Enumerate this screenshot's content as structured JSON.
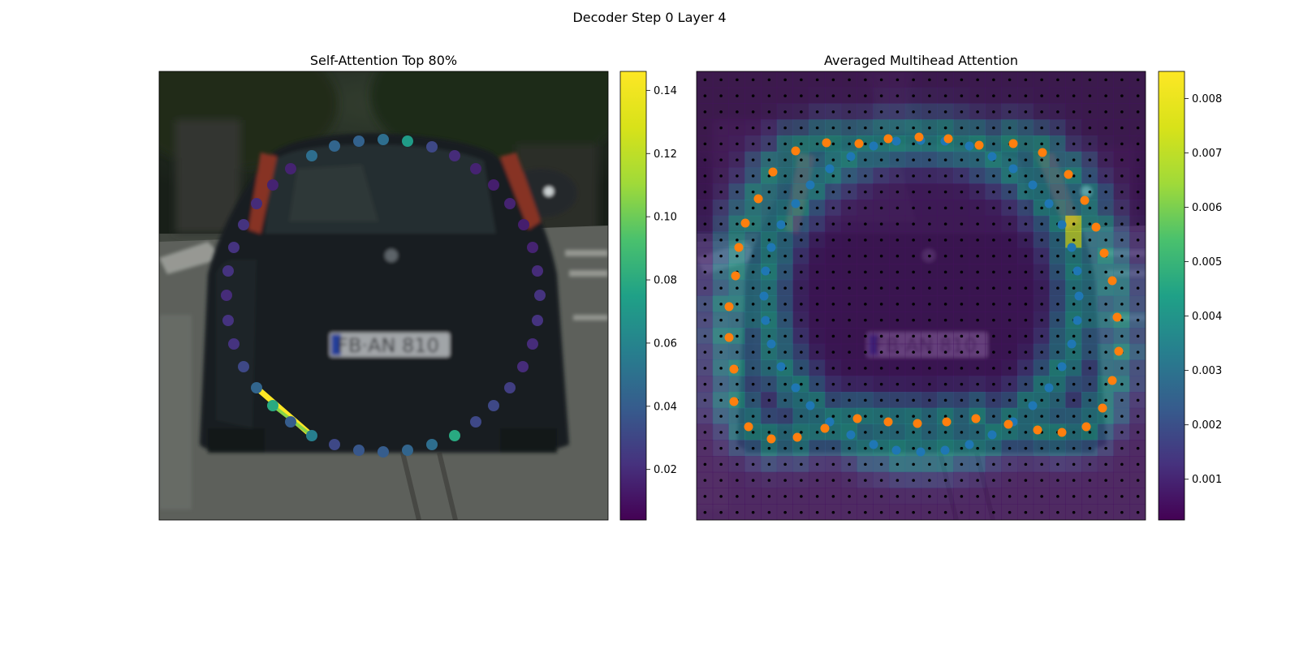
{
  "figure": {
    "title": "Decoder Step 0 Layer 4"
  },
  "chart_data": [
    {
      "type": "scatter",
      "title": "Self-Attention Top 80%",
      "background": "photo of the rear of a dark hatchback car on a street (blurred)",
      "colormap": "viridis",
      "colorbar": {
        "range": [
          0.004,
          0.146
        ],
        "ticks": [
          "0.02",
          "0.04",
          "0.06",
          "0.08",
          "0.10",
          "0.12",
          "0.14"
        ]
      },
      "points": [
        [
          384,
          192,
          0.055
        ],
        [
          412,
          180,
          0.05
        ],
        [
          442,
          174,
          0.048
        ],
        [
          472,
          172,
          0.055
        ],
        [
          502,
          174,
          0.082
        ],
        [
          532,
          181,
          0.035
        ],
        [
          560,
          192,
          0.022
        ],
        [
          586,
          208,
          0.018
        ],
        [
          608,
          228,
          0.016
        ],
        [
          628,
          251,
          0.018
        ],
        [
          645,
          277,
          0.016
        ],
        [
          656,
          305,
          0.018
        ],
        [
          662,
          334,
          0.022
        ],
        [
          665,
          364,
          0.025
        ],
        [
          662,
          395,
          0.025
        ],
        [
          656,
          424,
          0.022
        ],
        [
          644,
          452,
          0.022
        ],
        [
          628,
          478,
          0.03
        ],
        [
          608,
          500,
          0.035
        ],
        [
          586,
          520,
          0.035
        ],
        [
          560,
          537,
          0.09
        ],
        [
          532,
          548,
          0.055
        ],
        [
          502,
          555,
          0.05
        ],
        [
          472,
          557,
          0.045
        ],
        [
          442,
          555,
          0.042
        ],
        [
          412,
          548,
          0.035
        ],
        [
          384,
          537,
          0.065
        ],
        [
          358,
          520,
          0.045
        ],
        [
          336,
          500,
          0.09
        ],
        [
          316,
          478,
          0.05
        ],
        [
          300,
          452,
          0.035
        ],
        [
          288,
          424,
          0.025
        ],
        [
          281,
          395,
          0.025
        ],
        [
          279,
          364,
          0.022
        ],
        [
          281,
          334,
          0.025
        ],
        [
          288,
          305,
          0.025
        ],
        [
          300,
          277,
          0.025
        ],
        [
          316,
          251,
          0.022
        ],
        [
          336,
          228,
          0.018
        ],
        [
          358,
          208,
          0.018
        ]
      ],
      "top_connections": [
        {
          "from": [
            316,
            478
          ],
          "to": [
            384,
            537
          ],
          "weight": 0.146
        },
        {
          "from": [
            336,
            500
          ],
          "to": [
            384,
            537
          ],
          "weight": 0.12
        }
      ]
    },
    {
      "type": "heatmap",
      "title": "Averaged Multihead Attention",
      "background": "same car photo, dimmed under the attention heatmap",
      "colormap": "viridis",
      "colorbar": {
        "range": [
          0.00025,
          0.0085
        ],
        "ticks": [
          "0.001",
          "0.002",
          "0.003",
          "0.004",
          "0.005",
          "0.006",
          "0.007",
          "0.008"
        ]
      },
      "reference_grid": "black dots over every heatmap cell",
      "series": [
        {
          "color": "#1f77b4",
          "points": [
            [
              1022,
              208
            ],
            [
              1048,
              193
            ],
            [
              1076,
              180
            ],
            [
              1104,
              174
            ],
            [
              1134,
              173
            ],
            [
              1164,
              174
            ],
            [
              1194,
              180
            ],
            [
              1222,
              193
            ],
            [
              1248,
              208
            ],
            [
              1272,
              228
            ],
            [
              1292,
              251
            ],
            [
              1308,
              277
            ],
            [
              1320,
              305
            ],
            [
              1327,
              334
            ],
            [
              1329,
              365
            ],
            [
              1327,
              395
            ],
            [
              1320,
              424
            ],
            [
              1308,
              452
            ],
            [
              1292,
              478
            ],
            [
              1272,
              500
            ],
            [
              1248,
              520
            ],
            [
              1222,
              536
            ],
            [
              1194,
              548
            ],
            [
              1164,
              555
            ],
            [
              1134,
              557
            ],
            [
              1104,
              555
            ],
            [
              1076,
              548
            ],
            [
              1048,
              536
            ],
            [
              1022,
              520
            ],
            [
              998,
              500
            ],
            [
              980,
              478
            ],
            [
              962,
              452
            ],
            [
              950,
              424
            ],
            [
              943,
              395
            ],
            [
              941,
              365
            ],
            [
              943,
              334
            ],
            [
              950,
              305
            ],
            [
              962,
              277
            ],
            [
              980,
              251
            ],
            [
              998,
              228
            ]
          ]
        },
        {
          "color": "#ff7f0e",
          "points": [
            [
              1018,
              176
            ],
            [
              1058,
              177
            ],
            [
              1094,
              171
            ],
            [
              1132,
              169
            ],
            [
              1168,
              171
            ],
            [
              1206,
              179
            ],
            [
              1248,
              177
            ],
            [
              1284,
              188
            ],
            [
              1316,
              215
            ],
            [
              1336,
              247
            ],
            [
              1350,
              280
            ],
            [
              1360,
              312
            ],
            [
              1370,
              346
            ],
            [
              1376,
              391
            ],
            [
              1378,
              433
            ],
            [
              1370,
              469
            ],
            [
              1358,
              503
            ],
            [
              1338,
              526
            ],
            [
              1308,
              533
            ],
            [
              1278,
              530
            ],
            [
              1242,
              523
            ],
            [
              1202,
              516
            ],
            [
              1166,
              520
            ],
            [
              1130,
              522
            ],
            [
              1094,
              520
            ],
            [
              1056,
              516
            ],
            [
              1016,
              528
            ],
            [
              982,
              539
            ],
            [
              950,
              541
            ],
            [
              922,
              526
            ],
            [
              904,
              495
            ],
            [
              904,
              455
            ],
            [
              898,
              416
            ],
            [
              898,
              378
            ],
            [
              906,
              340
            ],
            [
              910,
              305
            ],
            [
              918,
              275
            ],
            [
              934,
              245
            ],
            [
              952,
              212
            ],
            [
              980,
              186
            ]
          ]
        }
      ],
      "hotspot": {
        "x_range": [
          1312,
          1332
        ],
        "y_range": [
          265,
          305
        ],
        "value": 0.0075
      }
    }
  ]
}
